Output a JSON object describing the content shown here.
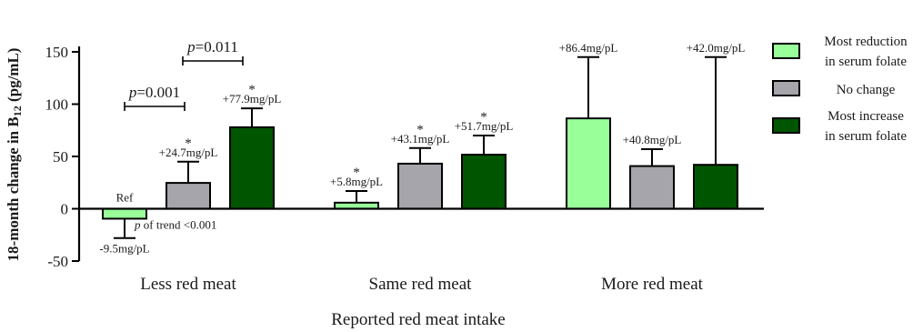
{
  "chart_data": {
    "type": "bar",
    "xlabel": "Reported red meat intake",
    "ylabel_main": "18-month change in B",
    "ylabel_sub": "12",
    "ylabel_unit": " (pg/mL)",
    "ylim": [
      -50,
      150
    ],
    "yticks": [
      -50,
      0,
      50,
      100,
      150
    ],
    "categories": [
      "Less red meat",
      "Same red meat",
      "More red meat"
    ],
    "series": [
      {
        "name": "Most reduction in serum folate",
        "legend_lines": [
          "Most reduction",
          "in serum folate"
        ],
        "color": "#99ff99",
        "values": [
          -9.5,
          5.8,
          86.4
        ],
        "err_upper": [
          null,
          17,
          145
        ],
        "err_lower": [
          -28,
          null,
          null
        ],
        "labels": [
          "-9.5mg/pL",
          "+5.8mg/pL",
          "+86.4mg/pL"
        ],
        "stars": [
          false,
          true,
          false
        ]
      },
      {
        "name": "No change",
        "legend_lines": [
          "No change"
        ],
        "color": "#a5a5ab",
        "values": [
          24.7,
          43.1,
          40.8
        ],
        "err_upper": [
          45,
          58,
          57
        ],
        "err_lower": [
          null,
          null,
          null
        ],
        "labels": [
          "+24.7mg/pL",
          "+43.1mg/pL",
          "+40.8mg/pL"
        ],
        "stars": [
          true,
          true,
          false
        ]
      },
      {
        "name": "Most increase in serum folate",
        "legend_lines": [
          "Most increase",
          "in serum folate"
        ],
        "color": "#005500",
        "values": [
          77.9,
          51.7,
          42.0
        ],
        "err_upper": [
          96,
          70,
          145
        ],
        "err_lower": [
          null,
          null,
          null
        ],
        "labels": [
          "+77.9mg/pL",
          "+51.7mg/pL",
          "+42.0mg/pL"
        ],
        "stars": [
          true,
          true,
          false
        ]
      }
    ],
    "annotations": {
      "ref": "Ref",
      "trend_p": "p",
      "trend_rest": " of trend <0.001",
      "bracket1_p": "p",
      "bracket1_val": "=0.001",
      "bracket2_p": "p",
      "bracket2_val": "=0.011",
      "star_symbol": "*"
    }
  }
}
